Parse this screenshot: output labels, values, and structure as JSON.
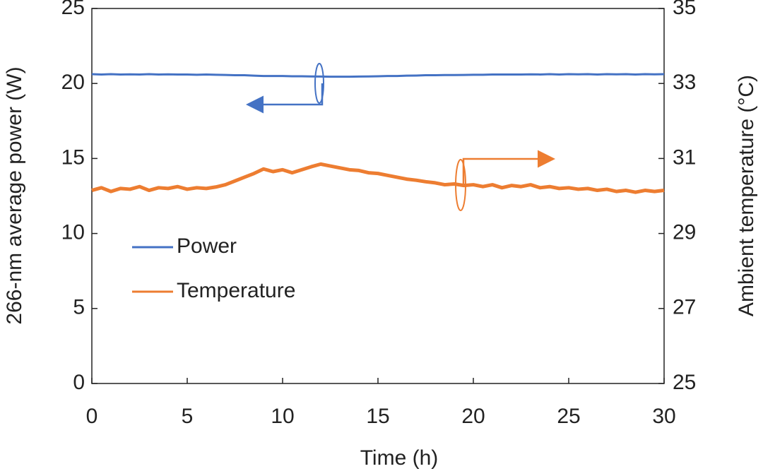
{
  "chart_data": {
    "type": "line",
    "x_label": "Time (h)",
    "y_label": "266-nm average power (W)",
    "y2_label": "Ambient temperature (°C)",
    "xlim": [
      0,
      30
    ],
    "xticks": [
      0,
      5,
      10,
      15,
      20,
      25,
      30
    ],
    "ylim": [
      0,
      25
    ],
    "yticks": [
      0,
      5,
      10,
      15,
      20,
      25
    ],
    "y2lim": [
      25,
      35
    ],
    "y2ticks": [
      25,
      27,
      29,
      31,
      33,
      35
    ],
    "legend": "center left",
    "x": [
      0,
      0.5,
      1,
      1.5,
      2,
      2.5,
      3,
      3.5,
      4,
      4.5,
      5,
      5.5,
      6,
      6.5,
      7,
      7.5,
      8,
      8.5,
      9,
      9.5,
      10,
      10.5,
      11,
      11.5,
      12,
      12.5,
      13,
      13.5,
      14,
      14.5,
      15,
      15.5,
      16,
      16.5,
      17,
      17.5,
      18,
      18.5,
      19,
      19.5,
      20,
      20.5,
      21,
      21.5,
      22,
      22.5,
      23,
      23.5,
      24,
      24.5,
      25,
      25.5,
      26,
      26.5,
      27,
      27.5,
      28,
      28.5,
      29,
      29.5,
      30
    ],
    "series": [
      {
        "name": "Power",
        "color": "#4472c4",
        "axis": "y",
        "values": [
          20.62,
          20.6,
          20.62,
          20.6,
          20.61,
          20.6,
          20.62,
          20.6,
          20.61,
          20.6,
          20.6,
          20.58,
          20.6,
          20.58,
          20.57,
          20.55,
          20.55,
          20.52,
          20.5,
          20.5,
          20.5,
          20.48,
          20.48,
          20.47,
          20.46,
          20.45,
          20.45,
          20.45,
          20.46,
          20.47,
          20.48,
          20.5,
          20.5,
          20.52,
          20.53,
          20.55,
          20.55,
          20.56,
          20.56,
          20.57,
          20.58,
          20.58,
          20.6,
          20.6,
          20.6,
          20.6,
          20.61,
          20.6,
          20.62,
          20.6,
          20.62,
          20.61,
          20.62,
          20.6,
          20.62,
          20.61,
          20.62,
          20.6,
          20.62,
          20.61,
          20.62
        ]
      },
      {
        "name": "Temperature",
        "color": "#ed7d31",
        "axis": "y2",
        "values": [
          30.15,
          30.22,
          30.12,
          30.2,
          30.18,
          30.25,
          30.15,
          30.22,
          30.2,
          30.25,
          30.18,
          30.22,
          30.2,
          30.24,
          30.3,
          30.4,
          30.5,
          30.6,
          30.72,
          30.65,
          30.7,
          30.62,
          30.7,
          30.78,
          30.85,
          30.8,
          30.75,
          30.7,
          30.68,
          30.62,
          30.6,
          30.55,
          30.5,
          30.45,
          30.42,
          30.38,
          30.35,
          30.3,
          30.32,
          30.28,
          30.3,
          30.25,
          30.3,
          30.22,
          30.28,
          30.25,
          30.3,
          30.22,
          30.25,
          30.2,
          30.22,
          30.18,
          30.2,
          30.15,
          30.18,
          30.12,
          30.15,
          30.1,
          30.15,
          30.12,
          30.15
        ]
      }
    ]
  }
}
